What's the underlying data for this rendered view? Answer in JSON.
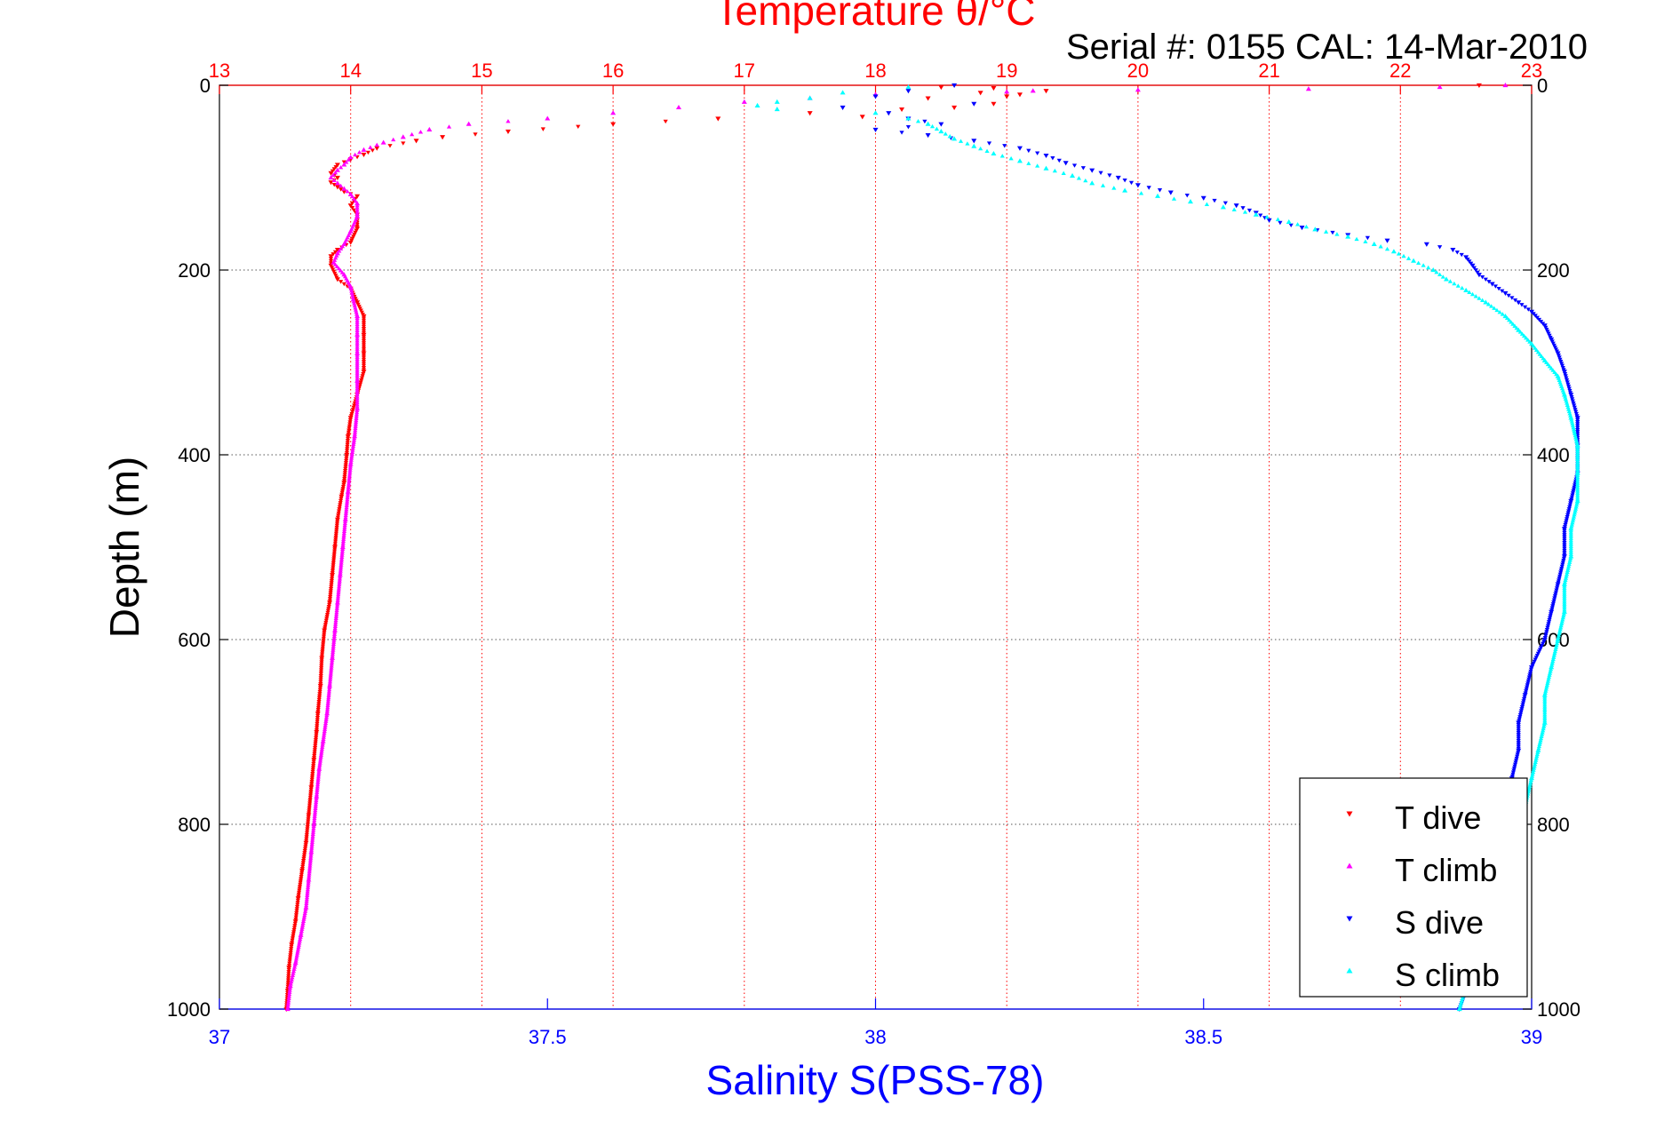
{
  "chart_data": {
    "type": "scatter",
    "title": "Temperature θ/°C",
    "subtitle": "Serial #: 0155  CAL: 14-Mar-2010",
    "ylabel": "Depth (m)",
    "xlabel": "Salinity S(PSS-78)",
    "ylim": [
      0,
      1000
    ],
    "y_reversed": true,
    "temperature_axis": {
      "position": "top",
      "min": 13,
      "max": 23,
      "ticks": [
        "13",
        "14",
        "15",
        "16",
        "17",
        "18",
        "19",
        "20",
        "21",
        "22",
        "23"
      ]
    },
    "salinity_axis": {
      "position": "bottom",
      "min": 37,
      "max": 39,
      "ticks": [
        "37",
        "37.5",
        "38",
        "38.5",
        "39"
      ]
    },
    "depth_ticks": [
      "0",
      "200",
      "400",
      "600",
      "800",
      "1000"
    ],
    "grid": true,
    "legend_position": "bottom-right",
    "series": [
      {
        "name": "T dive",
        "axis": "temperature",
        "color": "#ff0000",
        "marker": "triangle-down",
        "points": [
          [
            22.6,
            0
          ],
          [
            18.5,
            2
          ],
          [
            18.9,
            3
          ],
          [
            19.3,
            6
          ],
          [
            18.8,
            8
          ],
          [
            19.1,
            10
          ],
          [
            19.0,
            12
          ],
          [
            18.4,
            14
          ],
          [
            18.9,
            20
          ],
          [
            18.6,
            24
          ],
          [
            18.2,
            26
          ],
          [
            17.9,
            34
          ],
          [
            17.5,
            30
          ],
          [
            16.8,
            36
          ],
          [
            16.0,
            42
          ],
          [
            15.2,
            50
          ],
          [
            14.7,
            56
          ],
          [
            14.5,
            60
          ],
          [
            14.2,
            68
          ],
          [
            14.1,
            75
          ],
          [
            14.0,
            80
          ],
          [
            13.9,
            86
          ],
          [
            13.85,
            95
          ],
          [
            13.9,
            100
          ],
          [
            13.85,
            105
          ],
          [
            13.9,
            110
          ],
          [
            13.95,
            115
          ],
          [
            14.05,
            120
          ],
          [
            14.0,
            130
          ],
          [
            14.05,
            140
          ],
          [
            14.05,
            155
          ],
          [
            14.0,
            170
          ],
          [
            13.9,
            178
          ],
          [
            13.85,
            185
          ],
          [
            13.85,
            195
          ],
          [
            13.9,
            210
          ],
          [
            14.0,
            220
          ],
          [
            14.05,
            235
          ],
          [
            14.1,
            250
          ],
          [
            14.1,
            270
          ],
          [
            14.1,
            290
          ],
          [
            14.1,
            310
          ],
          [
            14.05,
            335
          ],
          [
            14.0,
            360
          ],
          [
            13.98,
            380
          ],
          [
            13.97,
            400
          ],
          [
            13.95,
            430
          ],
          [
            13.93,
            445
          ],
          [
            13.9,
            470
          ],
          [
            13.88,
            500
          ],
          [
            13.86,
            530
          ],
          [
            13.84,
            560
          ],
          [
            13.8,
            590
          ],
          [
            13.78,
            620
          ],
          [
            13.77,
            650
          ],
          [
            13.75,
            680
          ],
          [
            13.74,
            700
          ],
          [
            13.72,
            730
          ],
          [
            13.7,
            760
          ],
          [
            13.68,
            790
          ],
          [
            13.66,
            820
          ],
          [
            13.63,
            850
          ],
          [
            13.6,
            880
          ],
          [
            13.58,
            905
          ],
          [
            13.55,
            930
          ],
          [
            13.53,
            955
          ],
          [
            13.52,
            980
          ],
          [
            13.51,
            1000
          ]
        ]
      },
      {
        "name": "T climb",
        "axis": "temperature",
        "color": "#ff00ff",
        "marker": "triangle-up",
        "points": [
          [
            22.8,
            0
          ],
          [
            22.3,
            2
          ],
          [
            21.3,
            4
          ],
          [
            20.0,
            5
          ],
          [
            19.2,
            6
          ],
          [
            19.0,
            7
          ],
          [
            18.0,
            10
          ],
          [
            17.5,
            14
          ],
          [
            17.0,
            18
          ],
          [
            16.5,
            24
          ],
          [
            16.0,
            30
          ],
          [
            15.5,
            36
          ],
          [
            14.9,
            42
          ],
          [
            14.6,
            48
          ],
          [
            14.4,
            56
          ],
          [
            14.25,
            62
          ],
          [
            14.1,
            70
          ],
          [
            14.0,
            78
          ],
          [
            13.95,
            86
          ],
          [
            13.9,
            92
          ],
          [
            13.85,
            100
          ],
          [
            13.9,
            106
          ],
          [
            13.95,
            112
          ],
          [
            14.0,
            118
          ],
          [
            14.05,
            128
          ],
          [
            14.05,
            142
          ],
          [
            14.0,
            158
          ],
          [
            13.95,
            172
          ],
          [
            13.9,
            182
          ],
          [
            13.87,
            192
          ],
          [
            13.95,
            205
          ],
          [
            14.0,
            218
          ],
          [
            14.02,
            232
          ],
          [
            14.05,
            250
          ],
          [
            14.05,
            270
          ],
          [
            14.05,
            290
          ],
          [
            14.05,
            320
          ],
          [
            14.05,
            350
          ],
          [
            14.03,
            380
          ],
          [
            14.0,
            410
          ],
          [
            13.98,
            440
          ],
          [
            13.96,
            470
          ],
          [
            13.94,
            500
          ],
          [
            13.92,
            530
          ],
          [
            13.9,
            560
          ],
          [
            13.88,
            590
          ],
          [
            13.86,
            620
          ],
          [
            13.84,
            650
          ],
          [
            13.82,
            680
          ],
          [
            13.79,
            710
          ],
          [
            13.76,
            740
          ],
          [
            13.74,
            770
          ],
          [
            13.72,
            800
          ],
          [
            13.7,
            830
          ],
          [
            13.68,
            860
          ],
          [
            13.66,
            890
          ],
          [
            13.62,
            920
          ],
          [
            13.58,
            950
          ],
          [
            13.54,
            975
          ],
          [
            13.52,
            1000
          ]
        ]
      },
      {
        "name": "S dive",
        "axis": "salinity",
        "color": "#0000ff",
        "marker": "triangle-down",
        "points": [
          [
            38.12,
            0
          ],
          [
            38.05,
            6
          ],
          [
            38.0,
            12
          ],
          [
            38.15,
            20
          ],
          [
            37.95,
            24
          ],
          [
            38.02,
            30
          ],
          [
            38.05,
            36
          ],
          [
            38.1,
            42
          ],
          [
            38.0,
            48
          ],
          [
            38.08,
            54
          ],
          [
            38.15,
            60
          ],
          [
            38.22,
            68
          ],
          [
            38.26,
            76
          ],
          [
            38.29,
            84
          ],
          [
            38.33,
            92
          ],
          [
            38.37,
            100
          ],
          [
            38.4,
            108
          ],
          [
            38.45,
            116
          ],
          [
            38.5,
            122
          ],
          [
            38.55,
            130
          ],
          [
            38.58,
            138
          ],
          [
            38.6,
            146
          ],
          [
            38.65,
            154
          ],
          [
            38.72,
            162
          ],
          [
            38.78,
            168
          ],
          [
            38.84,
            172
          ],
          [
            38.88,
            178
          ],
          [
            38.9,
            186
          ],
          [
            38.91,
            195
          ],
          [
            38.92,
            205
          ],
          [
            38.94,
            215
          ],
          [
            38.96,
            225
          ],
          [
            38.98,
            235
          ],
          [
            39.0,
            245
          ],
          [
            39.02,
            260
          ],
          [
            39.03,
            275
          ],
          [
            39.04,
            290
          ],
          [
            39.05,
            310
          ],
          [
            39.06,
            335
          ],
          [
            39.07,
            360
          ],
          [
            39.07,
            390
          ],
          [
            39.07,
            420
          ],
          [
            39.06,
            450
          ],
          [
            39.05,
            480
          ],
          [
            39.05,
            510
          ],
          [
            39.04,
            540
          ],
          [
            39.03,
            570
          ],
          [
            39.02,
            600
          ],
          [
            39.0,
            630
          ],
          [
            38.99,
            660
          ],
          [
            38.98,
            690
          ],
          [
            38.98,
            720
          ],
          [
            38.97,
            750
          ],
          [
            38.97,
            780
          ],
          [
            38.96,
            810
          ],
          [
            38.96,
            840
          ],
          [
            38.95,
            870
          ],
          [
            38.94,
            900
          ],
          [
            38.92,
            930
          ],
          [
            38.91,
            955
          ],
          [
            38.9,
            980
          ],
          [
            38.89,
            1000
          ]
        ]
      },
      {
        "name": "S climb",
        "axis": "salinity",
        "color": "#00ffff",
        "marker": "triangle-up",
        "points": [
          [
            38.05,
            2
          ],
          [
            37.95,
            8
          ],
          [
            37.9,
            14
          ],
          [
            37.85,
            18
          ],
          [
            37.82,
            22
          ],
          [
            37.85,
            26
          ],
          [
            38.0,
            30
          ],
          [
            38.05,
            36
          ],
          [
            38.08,
            42
          ],
          [
            38.1,
            50
          ],
          [
            38.12,
            58
          ],
          [
            38.15,
            66
          ],
          [
            38.18,
            74
          ],
          [
            38.22,
            82
          ],
          [
            38.26,
            90
          ],
          [
            38.3,
            98
          ],
          [
            38.33,
            106
          ],
          [
            38.38,
            114
          ],
          [
            38.43,
            120
          ],
          [
            38.48,
            126
          ],
          [
            38.53,
            132
          ],
          [
            38.58,
            140
          ],
          [
            38.63,
            148
          ],
          [
            38.67,
            156
          ],
          [
            38.72,
            164
          ],
          [
            38.76,
            172
          ],
          [
            38.79,
            180
          ],
          [
            38.82,
            190
          ],
          [
            38.85,
            200
          ],
          [
            38.87,
            210
          ],
          [
            38.9,
            222
          ],
          [
            38.93,
            235
          ],
          [
            38.96,
            250
          ],
          [
            38.98,
            265
          ],
          [
            39.0,
            280
          ],
          [
            39.02,
            298
          ],
          [
            39.04,
            315
          ],
          [
            39.05,
            335
          ],
          [
            39.06,
            360
          ],
          [
            39.07,
            390
          ],
          [
            39.07,
            420
          ],
          [
            39.07,
            450
          ],
          [
            39.06,
            480
          ],
          [
            39.06,
            510
          ],
          [
            39.05,
            540
          ],
          [
            39.05,
            570
          ],
          [
            39.04,
            600
          ],
          [
            39.03,
            630
          ],
          [
            39.02,
            660
          ],
          [
            39.02,
            690
          ],
          [
            39.01,
            720
          ],
          [
            39.0,
            750
          ],
          [
            38.99,
            780
          ],
          [
            38.98,
            810
          ],
          [
            38.97,
            840
          ],
          [
            38.96,
            870
          ],
          [
            38.95,
            900
          ],
          [
            38.93,
            925
          ],
          [
            38.91,
            950
          ],
          [
            38.9,
            975
          ],
          [
            38.89,
            1000
          ]
        ]
      }
    ]
  }
}
